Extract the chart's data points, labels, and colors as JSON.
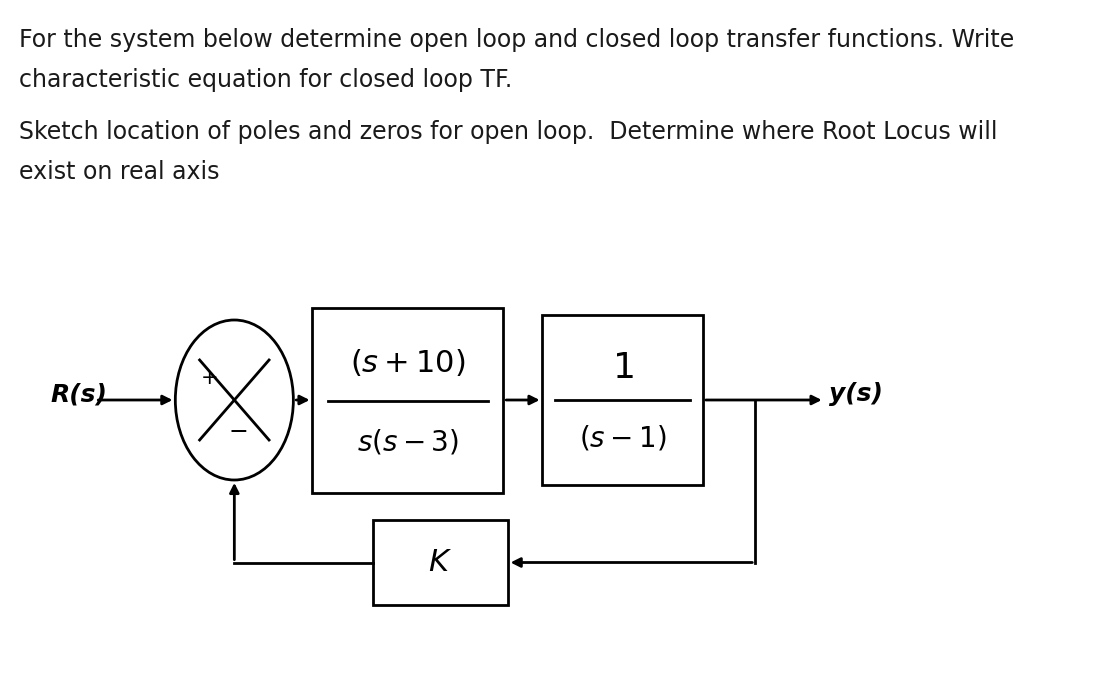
{
  "background_color": "#ffffff",
  "text_color": "#1a1a1a",
  "title_line1": "For the system below determine open loop and closed loop transfer functions. Write",
  "title_line2": "characteristic equation for closed loop TF.",
  "subtitle_line1": "Sketch location of poles and zeros for open loop.  Determine where Root Locus will",
  "subtitle_line2": "exist on real axis",
  "block1_numerator": "$(s + 10)$",
  "block1_denominator": "$s(s - 3)$",
  "block2_numerator": "$1$",
  "block2_denominator": "$(s-1)$",
  "feedback_label": "$K$",
  "input_label": "R(s)",
  "output_label": "y(s)",
  "font_size_text": 17,
  "font_size_block_num": 22,
  "font_size_block_den": 20,
  "font_size_labels": 18,
  "font_size_K": 22,
  "lw": 2.0
}
